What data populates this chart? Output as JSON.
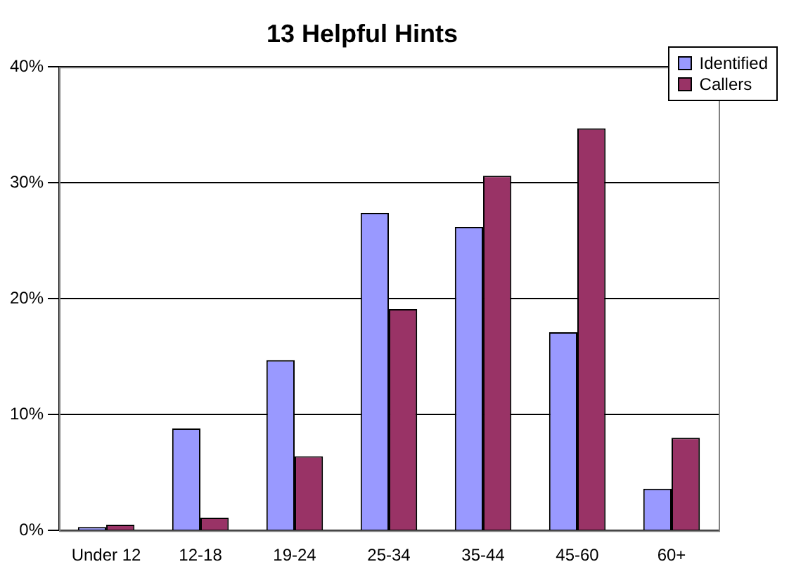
{
  "chart_data": {
    "type": "bar",
    "title": "13 Helpful Hints",
    "categories": [
      "Under 12",
      "12-18",
      "19-24",
      "25-34",
      "35-44",
      "45-60",
      "60+"
    ],
    "series": [
      {
        "name": "Identified",
        "color": "#9999ff",
        "values": [
          0.3,
          8.8,
          14.7,
          27.4,
          26.2,
          17.1,
          3.6
        ]
      },
      {
        "name": "Callers",
        "color": "#993366",
        "values": [
          0.5,
          1.1,
          6.4,
          19.1,
          30.6,
          34.7,
          8.0
        ]
      }
    ],
    "ylim": [
      0,
      40
    ],
    "yticks": [
      {
        "value": 0,
        "label": "0%"
      },
      {
        "value": 10,
        "label": "10%"
      },
      {
        "value": 20,
        "label": "20%"
      },
      {
        "value": 30,
        "label": "30%"
      },
      {
        "value": 40,
        "label": "40%"
      }
    ],
    "grid": "y",
    "legend": "top right"
  }
}
